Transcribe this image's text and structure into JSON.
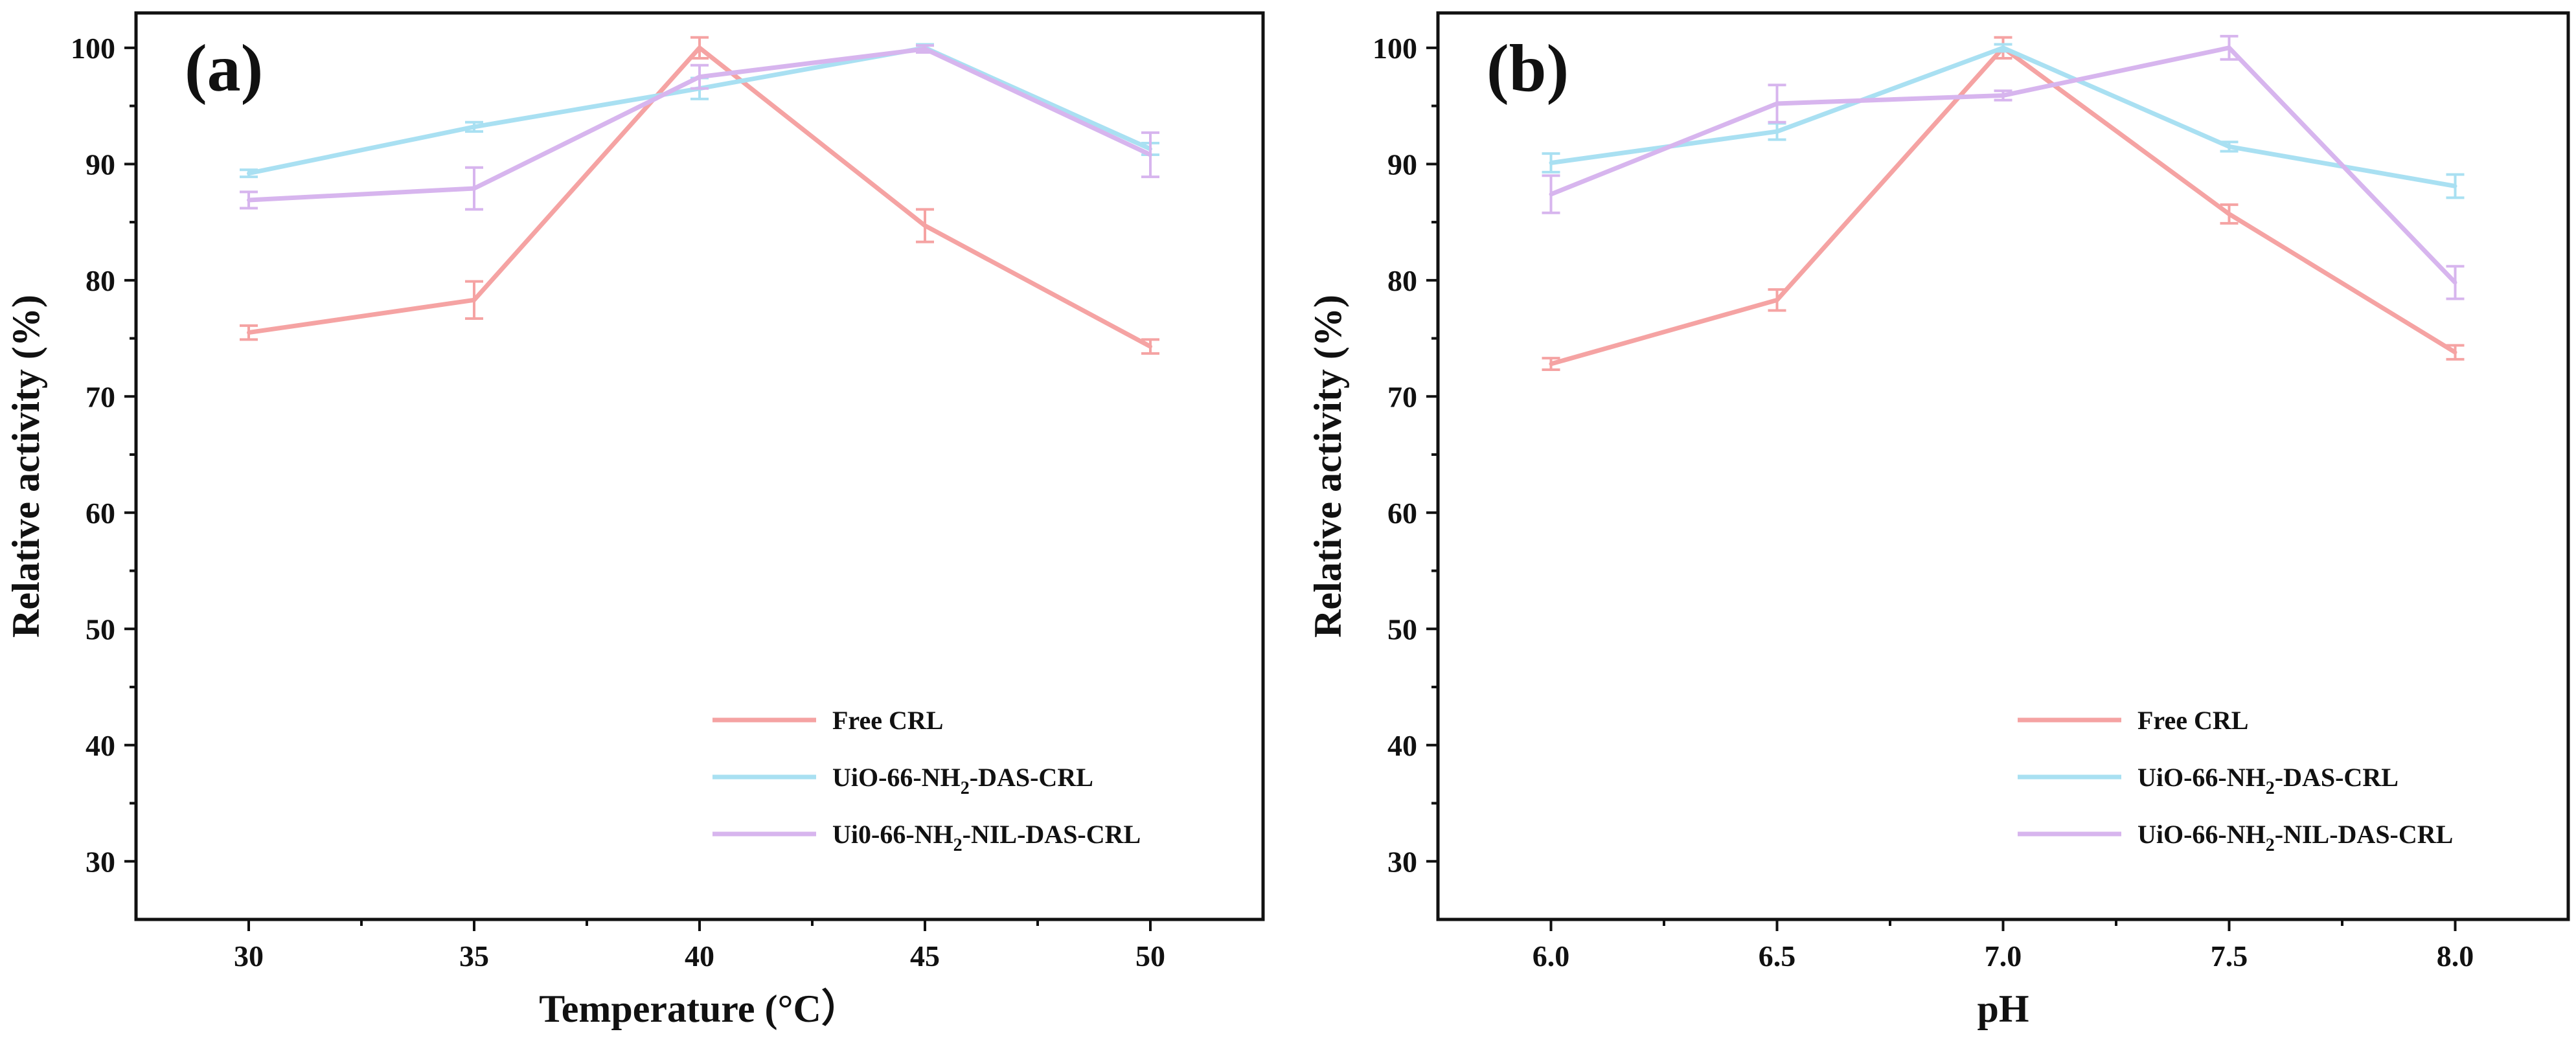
{
  "chart_data": [
    {
      "type": "line",
      "panel_label": "(a)",
      "xlabel": "Temperature (°C）",
      "ylabel": "Relative activity (%)",
      "x": [
        30,
        35,
        40,
        45,
        50
      ],
      "x_tick_labels": [
        "30",
        "35",
        "40",
        "45",
        "50"
      ],
      "xlim": [
        27.5,
        52.5
      ],
      "ylim": [
        25,
        103
      ],
      "y_ticks": [
        30,
        40,
        50,
        60,
        70,
        80,
        90,
        100
      ],
      "y_tick_labels": [
        "30",
        "40",
        "50",
        "60",
        "70",
        "80",
        "90",
        "100"
      ],
      "legend_position": "lower-right",
      "series": [
        {
          "name": "Free CRL",
          "legend_parts": [
            "Free CRL"
          ],
          "color": "#f5a3a3",
          "values": [
            75.5,
            78.3,
            100.0,
            84.7,
            74.3
          ],
          "errors": [
            0.6,
            1.6,
            0.9,
            1.4,
            0.6
          ]
        },
        {
          "name": "UiO-66-NH2-DAS-CRL",
          "legend_parts": [
            "UiO-66-NH",
            "2",
            "-DAS-CRL"
          ],
          "color": "#a9e0f2",
          "values": [
            89.2,
            93.2,
            96.5,
            100.0,
            91.3
          ],
          "errors": [
            0.3,
            0.4,
            0.9,
            0.3,
            0.5
          ]
        },
        {
          "name": "Ui0-66-NH2-NIL-DAS-CRL",
          "legend_parts": [
            "Ui0-66-NH",
            "2",
            "-NIL-DAS-CRL"
          ],
          "color": "#d7b5ee",
          "values": [
            86.9,
            87.9,
            97.5,
            99.9,
            90.8
          ],
          "errors": [
            0.7,
            1.8,
            1.0,
            0.3,
            1.9
          ]
        }
      ]
    },
    {
      "type": "line",
      "panel_label": "(b)",
      "xlabel": "pH",
      "ylabel": "Relative activity (%)",
      "x": [
        6.0,
        6.5,
        7.0,
        7.5,
        8.0
      ],
      "x_tick_labels": [
        "6.0",
        "6.5",
        "7.0",
        "7.5",
        "8.0"
      ],
      "xlim": [
        5.75,
        8.25
      ],
      "ylim": [
        25,
        103
      ],
      "y_ticks": [
        30,
        40,
        50,
        60,
        70,
        80,
        90,
        100
      ],
      "y_tick_labels": [
        "30",
        "40",
        "50",
        "60",
        "70",
        "80",
        "90",
        "100"
      ],
      "legend_position": "lower-right",
      "series": [
        {
          "name": "Free CRL",
          "legend_parts": [
            "Free CRL"
          ],
          "color": "#f5a3a3",
          "values": [
            72.8,
            78.3,
            100.0,
            85.7,
            73.8
          ],
          "errors": [
            0.5,
            0.9,
            0.9,
            0.8,
            0.6
          ]
        },
        {
          "name": "UiO-66-NH2-DAS-CRL",
          "legend_parts": [
            "UiO-66-NH",
            "2",
            "-DAS-CRL"
          ],
          "color": "#a9e0f2",
          "values": [
            90.1,
            92.8,
            100.0,
            91.5,
            88.1
          ],
          "errors": [
            0.8,
            0.7,
            0.3,
            0.4,
            1.0
          ]
        },
        {
          "name": "UiO-66-NH2-NIL-DAS-CRL",
          "legend_parts": [
            "UiO-66-NH",
            "2",
            "-NIL-DAS-CRL"
          ],
          "color": "#d7b5ee",
          "values": [
            87.4,
            95.2,
            95.9,
            100.0,
            79.8
          ],
          "errors": [
            1.6,
            1.6,
            0.4,
            1.0,
            1.4
          ]
        }
      ]
    }
  ]
}
